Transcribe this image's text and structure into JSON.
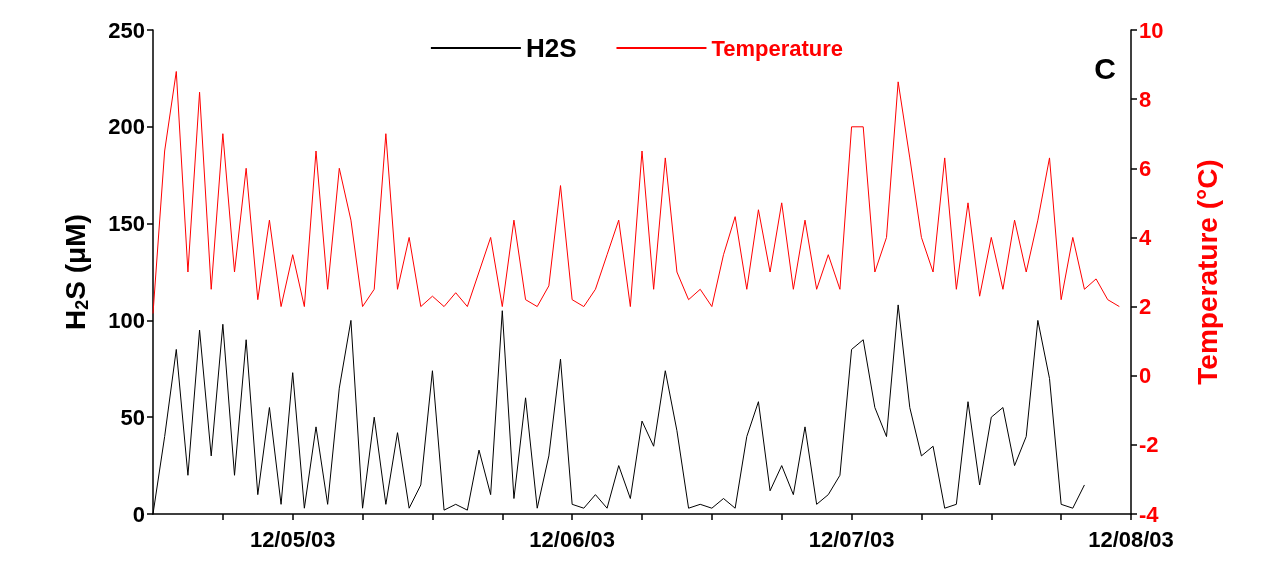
{
  "chart_data": {
    "type": "line",
    "ylabel": "H$_{2}$S (μM)",
    "y2label": "Temperature (°C)",
    "annotations": [
      "C"
    ],
    "x": [
      "--12-04T12:00",
      "--12-04T13:00",
      "--12-04T14:00",
      "--12-04T15:00",
      "--12-04T16:00",
      "--12-04T17:00",
      "--12-04T18:00",
      "--12-04T19:00",
      "--12-04T20:00",
      "--12-04T21:00",
      "--12-04T22:00",
      "--12-04T23:00",
      "--12-05T00:00",
      "--12-05T01:00",
      "--12-05T02:00",
      "--12-05T03:00",
      "--12-05T04:00",
      "--12-05T05:00",
      "--12-05T06:00",
      "--12-05T07:00",
      "--12-05T08:00",
      "--12-05T09:00",
      "--12-05T10:00",
      "--12-05T11:00",
      "--12-05T12:00",
      "--12-05T13:00",
      "--12-05T14:00",
      "--12-05T15:00",
      "--12-05T16:00",
      "--12-05T17:00",
      "--12-05T18:00",
      "--12-05T19:00",
      "--12-05T20:00",
      "--12-05T21:00",
      "--12-05T22:00",
      "--12-05T23:00",
      "--12-06T00:00",
      "--12-06T01:00",
      "--12-06T02:00",
      "--12-06T03:00",
      "--12-06T04:00",
      "--12-06T05:00",
      "--12-06T06:00",
      "--12-06T07:00",
      "--12-06T08:00",
      "--12-06T09:00",
      "--12-06T10:00",
      "--12-06T11:00",
      "--12-06T12:00",
      "--12-06T13:00",
      "--12-06T14:00",
      "--12-06T15:00",
      "--12-06T16:00",
      "--12-06T17:00",
      "--12-06T18:00",
      "--12-06T19:00",
      "--12-06T20:00",
      "--12-06T21:00",
      "--12-06T22:00",
      "--12-06T23:00",
      "--12-07T00:00",
      "--12-07T01:00",
      "--12-07T02:00",
      "--12-07T03:00",
      "--12-07T04:00",
      "--12-07T05:00",
      "--12-07T06:00",
      "--12-07T07:00",
      "--12-07T08:00",
      "--12-07T09:00",
      "--12-07T10:00",
      "--12-07T11:00",
      "--12-07T12:00",
      "--12-07T13:00",
      "--12-07T14:00",
      "--12-07T15:00",
      "--12-07T16:00",
      "--12-07T17:00",
      "--12-07T18:00",
      "--12-07T19:00",
      "--12-07T20:00",
      "--12-07T21:00",
      "--12-07T22:00",
      "--12-07T23:00"
    ],
    "series": [
      {
        "name": "H2S",
        "color": "#000000",
        "values": [
          0,
          40,
          85,
          20,
          95,
          30,
          98,
          20,
          90,
          10,
          55,
          5,
          73,
          3,
          45,
          5,
          65,
          100,
          3,
          50,
          5,
          42,
          3,
          15,
          74,
          2,
          5,
          2,
          33,
          10,
          105,
          8,
          60,
          3,
          30,
          80,
          5,
          3,
          10,
          3,
          25,
          8,
          48,
          35,
          74,
          43,
          3,
          5,
          3,
          8,
          3,
          40,
          58,
          12,
          25,
          10,
          45,
          5,
          10,
          20,
          85,
          90,
          55,
          40,
          108,
          55,
          30,
          35,
          3,
          5,
          58,
          15,
          50,
          55,
          25,
          40,
          100,
          70,
          5,
          3,
          15,
          null,
          null,
          null
        ]
      },
      {
        "name": "Temperature",
        "color": "#ff0000",
        "axis": "y2",
        "values": [
          1.8,
          6.5,
          8.8,
          3,
          8.2,
          2.5,
          7,
          3,
          6,
          2.2,
          4.5,
          2,
          3.5,
          2,
          6.5,
          2.5,
          6,
          4.5,
          2,
          2.5,
          7,
          2.5,
          4,
          2,
          2.3,
          2,
          2.4,
          2,
          3,
          4,
          2,
          4.5,
          2.2,
          2,
          2.6,
          5.5,
          2.2,
          2,
          2.5,
          3.5,
          4.5,
          2,
          6.5,
          2.5,
          6.3,
          3,
          2.2,
          2.5,
          2,
          3.5,
          4.6,
          2.5,
          4.8,
          3,
          5,
          2.5,
          4.5,
          2.5,
          3.5,
          2.5,
          7.2,
          7.2,
          3,
          4,
          8.5,
          6.3,
          4,
          3,
          6.3,
          2.5,
          5,
          2.3,
          4,
          2.5,
          4.5,
          3,
          4.5,
          6.3,
          2.2,
          4,
          2.5,
          2.8,
          2.2,
          2
        ]
      }
    ],
    "xlim": [
      "--12-04T12:00",
      "--12-08T00:00"
    ],
    "xticks": [
      {
        "value": "--12-04T18:00",
        "label": null
      },
      {
        "value": "--12-05T00:00",
        "label": "12/05/03"
      },
      {
        "value": "--12-05T06:00",
        "label": null
      },
      {
        "value": "--12-05T12:00",
        "label": null
      },
      {
        "value": "--12-05T18:00",
        "label": null
      },
      {
        "value": "--12-06T00:00",
        "label": "12/06/03"
      },
      {
        "value": "--12-06T06:00",
        "label": null
      },
      {
        "value": "--12-06T12:00",
        "label": null
      },
      {
        "value": "--12-06T18:00",
        "label": null
      },
      {
        "value": "--12-07T00:00",
        "label": "12/07/03"
      },
      {
        "value": "--12-07T06:00",
        "label": null
      },
      {
        "value": "--12-07T12:00",
        "label": null
      },
      {
        "value": "--12-07T18:00",
        "label": null
      },
      {
        "value": "--12-08T00:00",
        "label": "12/08/03"
      }
    ],
    "ylim": [
      0,
      250
    ],
    "yticks": [
      0,
      50,
      100,
      150,
      200,
      250
    ],
    "y2lim": [
      -4,
      10
    ],
    "y2ticks": [
      -4,
      -2,
      0,
      2,
      4,
      6,
      8,
      10
    ],
    "grid": false,
    "legend": "top",
    "marker": "none",
    "line_style": "solid"
  }
}
